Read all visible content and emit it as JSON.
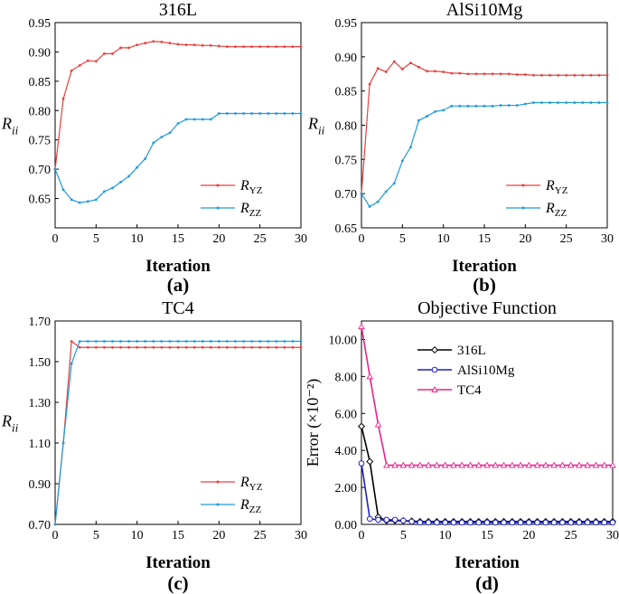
{
  "colors": {
    "ryz": "#e8403d",
    "rzz": "#1f9ad8",
    "c316l": "#000000",
    "alsi": "#1f1fc8",
    "tc4": "#e8228a"
  },
  "chart_data": [
    {
      "type": "line",
      "title": "316L",
      "xlabel": "Iteration",
      "ylabel": "R_ii",
      "panel_label": "(a)",
      "xlim": [
        0,
        30
      ],
      "ylim": [
        0.6,
        0.95
      ],
      "xticks": [
        "0",
        "5",
        "10",
        "15",
        "20",
        "25",
        "30"
      ],
      "yticks": [
        "0.65",
        "0.70",
        "0.75",
        "0.80",
        "0.85",
        "0.90",
        "0.95"
      ],
      "legend_position": "bottom-right",
      "x": [
        0,
        1,
        2,
        3,
        4,
        5,
        6,
        7,
        8,
        9,
        10,
        11,
        12,
        13,
        14,
        15,
        16,
        17,
        18,
        19,
        20,
        21,
        22,
        23,
        24,
        25,
        26,
        27,
        28,
        29,
        30
      ],
      "series": [
        {
          "name": "R",
          "sub": "YZ",
          "color_key": "ryz",
          "values": [
            0.7,
            0.82,
            0.868,
            0.877,
            0.885,
            0.884,
            0.897,
            0.897,
            0.907,
            0.907,
            0.912,
            0.915,
            0.918,
            0.917,
            0.915,
            0.913,
            0.912,
            0.912,
            0.911,
            0.911,
            0.91,
            0.909,
            0.909,
            0.909,
            0.909,
            0.909,
            0.909,
            0.909,
            0.909,
            0.909,
            0.909
          ]
        },
        {
          "name": "R",
          "sub": "ZZ",
          "color_key": "rzz",
          "values": [
            0.7,
            0.665,
            0.648,
            0.643,
            0.645,
            0.648,
            0.662,
            0.668,
            0.678,
            0.688,
            0.703,
            0.718,
            0.745,
            0.755,
            0.762,
            0.778,
            0.785,
            0.785,
            0.785,
            0.785,
            0.795,
            0.795,
            0.795,
            0.795,
            0.795,
            0.795,
            0.795,
            0.795,
            0.795,
            0.795,
            0.795
          ]
        }
      ]
    },
    {
      "type": "line",
      "title": "AlSi10Mg",
      "xlabel": "Iteration",
      "ylabel": "R_ii",
      "panel_label": "(b)",
      "xlim": [
        0,
        30
      ],
      "ylim": [
        0.65,
        0.95
      ],
      "xticks": [
        "0",
        "5",
        "10",
        "15",
        "20",
        "25",
        "30"
      ],
      "yticks": [
        "0.65",
        "0.70",
        "0.75",
        "0.80",
        "0.85",
        "0.90",
        "0.95"
      ],
      "legend_position": "bottom-right",
      "x": [
        0,
        1,
        2,
        3,
        4,
        5,
        6,
        7,
        8,
        9,
        10,
        11,
        12,
        13,
        14,
        15,
        16,
        17,
        18,
        19,
        20,
        21,
        22,
        23,
        24,
        25,
        26,
        27,
        28,
        29,
        30
      ],
      "series": [
        {
          "name": "R",
          "sub": "YZ",
          "color_key": "ryz",
          "values": [
            0.7,
            0.86,
            0.883,
            0.878,
            0.893,
            0.882,
            0.891,
            0.885,
            0.879,
            0.879,
            0.878,
            0.876,
            0.876,
            0.875,
            0.875,
            0.875,
            0.875,
            0.875,
            0.875,
            0.874,
            0.874,
            0.873,
            0.873,
            0.873,
            0.873,
            0.873,
            0.873,
            0.873,
            0.873,
            0.873,
            0.873
          ]
        },
        {
          "name": "R",
          "sub": "ZZ",
          "color_key": "rzz",
          "values": [
            0.7,
            0.681,
            0.688,
            0.703,
            0.715,
            0.748,
            0.768,
            0.807,
            0.813,
            0.82,
            0.822,
            0.828,
            0.828,
            0.828,
            0.828,
            0.828,
            0.828,
            0.829,
            0.829,
            0.829,
            0.831,
            0.833,
            0.833,
            0.833,
            0.833,
            0.833,
            0.833,
            0.833,
            0.833,
            0.833,
            0.833
          ]
        }
      ]
    },
    {
      "type": "line",
      "title": "TC4",
      "xlabel": "Iteration",
      "ylabel": "R_ii",
      "panel_label": "(c)",
      "xlim": [
        0,
        30
      ],
      "ylim": [
        0.7,
        1.7
      ],
      "xticks": [
        "0",
        "5",
        "10",
        "15",
        "20",
        "25",
        "30"
      ],
      "yticks": [
        "0.70",
        "0.90",
        "1.10",
        "1.30",
        "1.50",
        "1.70"
      ],
      "legend_position": "bottom-right",
      "x": [
        0,
        1,
        2,
        3,
        4,
        5,
        6,
        7,
        8,
        9,
        10,
        11,
        12,
        13,
        14,
        15,
        16,
        17,
        18,
        19,
        20,
        21,
        22,
        23,
        24,
        25,
        26,
        27,
        28,
        29,
        30
      ],
      "series": [
        {
          "name": "R",
          "sub": "YZ",
          "color_key": "ryz",
          "values": [
            0.7,
            1.1,
            1.6,
            1.57,
            1.57,
            1.57,
            1.57,
            1.57,
            1.57,
            1.57,
            1.57,
            1.57,
            1.57,
            1.57,
            1.57,
            1.57,
            1.57,
            1.57,
            1.57,
            1.57,
            1.57,
            1.57,
            1.57,
            1.57,
            1.57,
            1.57,
            1.57,
            1.57,
            1.57,
            1.57,
            1.57
          ]
        },
        {
          "name": "R",
          "sub": "ZZ",
          "color_key": "rzz",
          "values": [
            0.7,
            1.1,
            1.49,
            1.6,
            1.6,
            1.6,
            1.6,
            1.6,
            1.6,
            1.6,
            1.6,
            1.6,
            1.6,
            1.6,
            1.6,
            1.6,
            1.6,
            1.6,
            1.6,
            1.6,
            1.6,
            1.6,
            1.6,
            1.6,
            1.6,
            1.6,
            1.6,
            1.6,
            1.6,
            1.6,
            1.6
          ]
        }
      ]
    },
    {
      "type": "line",
      "title": "Objective Function",
      "xlabel": "Iteration",
      "ylabel": "Error (×10⁻²)",
      "panel_label": "(d)",
      "xlim": [
        0,
        30
      ],
      "ylim": [
        0,
        11
      ],
      "xticks": [
        "0",
        "5",
        "10",
        "15",
        "20",
        "25",
        "30"
      ],
      "yticks": [
        "0.00",
        "2.00",
        "4.00",
        "6.00",
        "8.00",
        "10.00"
      ],
      "legend_position": "top-right",
      "x": [
        0,
        1,
        2,
        3,
        4,
        5,
        6,
        7,
        8,
        9,
        10,
        11,
        12,
        13,
        14,
        15,
        16,
        17,
        18,
        19,
        20,
        21,
        22,
        23,
        24,
        25,
        26,
        27,
        28,
        29,
        30
      ],
      "series": [
        {
          "name": "316L",
          "color_key": "c316l",
          "values": [
            5.3,
            3.4,
            0.4,
            0.2,
            0.2,
            0.2,
            0.18,
            0.15,
            0.15,
            0.15,
            0.15,
            0.15,
            0.15,
            0.15,
            0.15,
            0.15,
            0.15,
            0.15,
            0.15,
            0.15,
            0.15,
            0.15,
            0.15,
            0.15,
            0.15,
            0.15,
            0.15,
            0.15,
            0.15,
            0.15,
            0.15
          ]
        },
        {
          "name": "AlSi10Mg",
          "color_key": "alsi",
          "values": [
            3.3,
            0.3,
            0.25,
            0.25,
            0.25,
            0.2,
            0.15,
            0.1,
            0.1,
            0.1,
            0.1,
            0.1,
            0.1,
            0.1,
            0.1,
            0.1,
            0.1,
            0.1,
            0.1,
            0.1,
            0.1,
            0.1,
            0.1,
            0.1,
            0.1,
            0.1,
            0.1,
            0.1,
            0.1,
            0.1,
            0.1
          ]
        },
        {
          "name": "TC4",
          "color_key": "tc4",
          "values": [
            10.7,
            8.0,
            5.4,
            3.2,
            3.2,
            3.2,
            3.2,
            3.2,
            3.2,
            3.2,
            3.2,
            3.2,
            3.2,
            3.2,
            3.2,
            3.2,
            3.2,
            3.2,
            3.2,
            3.2,
            3.2,
            3.2,
            3.2,
            3.2,
            3.2,
            3.2,
            3.2,
            3.2,
            3.2,
            3.2,
            3.2
          ]
        }
      ]
    }
  ]
}
